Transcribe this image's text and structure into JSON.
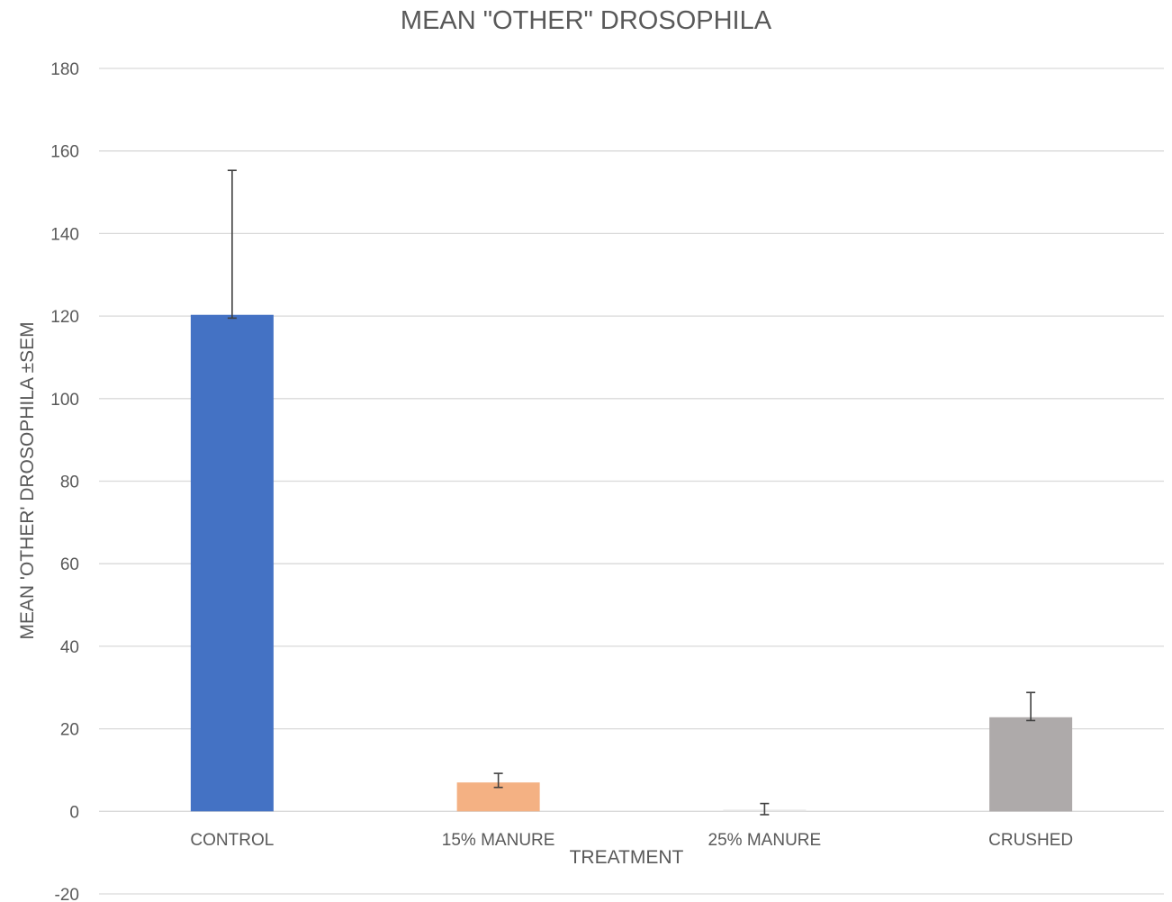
{
  "chart_data": {
    "type": "bar",
    "title": "MEAN \"OTHER\" DROSOPHILA",
    "xlabel": "TREATMENT",
    "ylabel": "MEAN 'OTHER' DROSOPHILA ±SEM",
    "categories": [
      "CONTROL",
      "15% MANURE",
      "25% MANURE",
      "CRUSHED"
    ],
    "values": [
      120.3,
      7.0,
      0.4,
      22.8
    ],
    "error_plus": [
      35.0,
      2.2,
      1.5,
      6.0
    ],
    "error_minus": [
      0.8,
      1.2,
      1.2,
      0.8
    ],
    "colors": [
      "#4472c4",
      "#f4b183",
      "#e6e6e6",
      "#aeaaaa"
    ],
    "ylim": [
      -20,
      180
    ],
    "yticks": [
      -20,
      0,
      20,
      40,
      60,
      80,
      100,
      120,
      140,
      160,
      180
    ],
    "grid": true,
    "legend": "none"
  }
}
